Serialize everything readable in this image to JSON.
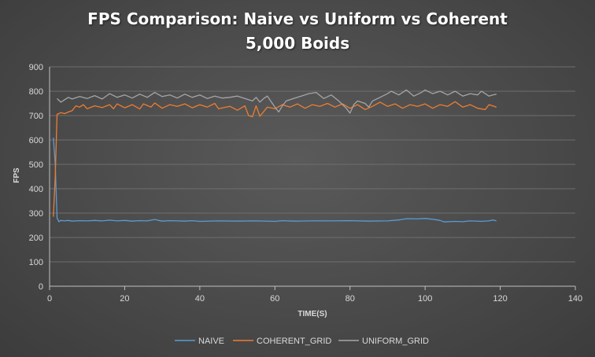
{
  "chart_data": {
    "type": "line",
    "title": "FPS Comparison: Naive vs Uniform vs Coherent",
    "subtitle": "5,000 Boids",
    "xlabel": "TIME(S)",
    "ylabel": "FPS",
    "xlim": [
      0,
      140
    ],
    "ylim": [
      0,
      900
    ],
    "xticks": [
      0,
      20,
      40,
      60,
      80,
      100,
      120,
      140
    ],
    "yticks": [
      0,
      100,
      200,
      300,
      400,
      500,
      600,
      700,
      800,
      900
    ],
    "grid": "horizontal",
    "legend": "bottom",
    "series": [
      {
        "name": "NAIVE",
        "color": "#5b9bd5",
        "points": [
          [
            1,
            610
          ],
          [
            1.5,
            500
          ],
          [
            2,
            280
          ],
          [
            2.5,
            265
          ],
          [
            3,
            270
          ],
          [
            4,
            268
          ],
          [
            5,
            270
          ],
          [
            6,
            267
          ],
          [
            8,
            269
          ],
          [
            10,
            268
          ],
          [
            12,
            270
          ],
          [
            14,
            268
          ],
          [
            16,
            271
          ],
          [
            18,
            268
          ],
          [
            20,
            270
          ],
          [
            22,
            267
          ],
          [
            24,
            269
          ],
          [
            26,
            268
          ],
          [
            28,
            274
          ],
          [
            29,
            270
          ],
          [
            30,
            267
          ],
          [
            32,
            269
          ],
          [
            34,
            268
          ],
          [
            36,
            267
          ],
          [
            38,
            269
          ],
          [
            40,
            266
          ],
          [
            45,
            268
          ],
          [
            50,
            267
          ],
          [
            55,
            268
          ],
          [
            60,
            266
          ],
          [
            62,
            269
          ],
          [
            65,
            267
          ],
          [
            70,
            268
          ],
          [
            75,
            268
          ],
          [
            80,
            269
          ],
          [
            85,
            267
          ],
          [
            90,
            268
          ],
          [
            93,
            272
          ],
          [
            95,
            277
          ],
          [
            98,
            276
          ],
          [
            100,
            278
          ],
          [
            102,
            275
          ],
          [
            104,
            270
          ],
          [
            105,
            264
          ],
          [
            108,
            266
          ],
          [
            110,
            265
          ],
          [
            112,
            268
          ],
          [
            115,
            266
          ],
          [
            117,
            268
          ],
          [
            118,
            272
          ],
          [
            119,
            268
          ]
        ]
      },
      {
        "name": "COHERENT_GRID",
        "color": "#ed7d31",
        "points": [
          [
            1,
            285
          ],
          [
            1.5,
            450
          ],
          [
            2,
            705
          ],
          [
            3,
            712
          ],
          [
            4,
            708
          ],
          [
            5,
            715
          ],
          [
            6,
            720
          ],
          [
            7,
            740
          ],
          [
            8,
            735
          ],
          [
            9,
            745
          ],
          [
            10,
            728
          ],
          [
            12,
            740
          ],
          [
            14,
            733
          ],
          [
            16,
            745
          ],
          [
            17,
            728
          ],
          [
            18,
            748
          ],
          [
            20,
            732
          ],
          [
            22,
            745
          ],
          [
            24,
            727
          ],
          [
            25,
            748
          ],
          [
            27,
            735
          ],
          [
            28,
            752
          ],
          [
            30,
            730
          ],
          [
            32,
            745
          ],
          [
            34,
            738
          ],
          [
            36,
            748
          ],
          [
            38,
            732
          ],
          [
            40,
            745
          ],
          [
            42,
            735
          ],
          [
            44,
            750
          ],
          [
            45,
            728
          ],
          [
            48,
            738
          ],
          [
            50,
            722
          ],
          [
            52,
            740
          ],
          [
            53,
            700
          ],
          [
            54,
            695
          ],
          [
            55,
            740
          ],
          [
            56,
            697
          ],
          [
            58,
            735
          ],
          [
            60,
            728
          ],
          [
            62,
            745
          ],
          [
            64,
            735
          ],
          [
            66,
            748
          ],
          [
            68,
            730
          ],
          [
            70,
            745
          ],
          [
            72,
            738
          ],
          [
            74,
            750
          ],
          [
            76,
            735
          ],
          [
            78,
            748
          ],
          [
            80,
            730
          ],
          [
            82,
            745
          ],
          [
            84,
            725
          ],
          [
            86,
            738
          ],
          [
            88,
            755
          ],
          [
            90,
            738
          ],
          [
            92,
            748
          ],
          [
            94,
            730
          ],
          [
            96,
            745
          ],
          [
            98,
            738
          ],
          [
            100,
            748
          ],
          [
            102,
            730
          ],
          [
            104,
            745
          ],
          [
            106,
            738
          ],
          [
            108,
            757
          ],
          [
            110,
            735
          ],
          [
            112,
            745
          ],
          [
            114,
            730
          ],
          [
            116,
            725
          ],
          [
            117,
            745
          ],
          [
            118,
            740
          ],
          [
            119,
            735
          ]
        ]
      },
      {
        "name": "UNIFORM_GRID",
        "color": "#a5a5a5",
        "points": [
          [
            2,
            770
          ],
          [
            3,
            755
          ],
          [
            4,
            765
          ],
          [
            5,
            775
          ],
          [
            6,
            768
          ],
          [
            8,
            778
          ],
          [
            10,
            770
          ],
          [
            12,
            782
          ],
          [
            14,
            768
          ],
          [
            16,
            790
          ],
          [
            18,
            775
          ],
          [
            20,
            785
          ],
          [
            22,
            772
          ],
          [
            24,
            788
          ],
          [
            26,
            775
          ],
          [
            28,
            795
          ],
          [
            30,
            778
          ],
          [
            32,
            785
          ],
          [
            34,
            772
          ],
          [
            36,
            788
          ],
          [
            38,
            775
          ],
          [
            40,
            785
          ],
          [
            42,
            770
          ],
          [
            44,
            780
          ],
          [
            46,
            772
          ],
          [
            48,
            775
          ],
          [
            50,
            780
          ],
          [
            52,
            770
          ],
          [
            54,
            760
          ],
          [
            55,
            775
          ],
          [
            56,
            755
          ],
          [
            57,
            770
          ],
          [
            58,
            780
          ],
          [
            60,
            735
          ],
          [
            61,
            715
          ],
          [
            62,
            740
          ],
          [
            63,
            760
          ],
          [
            65,
            770
          ],
          [
            67,
            780
          ],
          [
            69,
            790
          ],
          [
            71,
            795
          ],
          [
            73,
            770
          ],
          [
            75,
            785
          ],
          [
            77,
            760
          ],
          [
            79,
            730
          ],
          [
            80,
            710
          ],
          [
            81,
            745
          ],
          [
            82,
            760
          ],
          [
            84,
            750
          ],
          [
            85,
            735
          ],
          [
            86,
            760
          ],
          [
            88,
            775
          ],
          [
            90,
            790
          ],
          [
            91,
            800
          ],
          [
            93,
            785
          ],
          [
            95,
            805
          ],
          [
            97,
            780
          ],
          [
            99,
            795
          ],
          [
            100,
            805
          ],
          [
            102,
            790
          ],
          [
            104,
            800
          ],
          [
            106,
            785
          ],
          [
            108,
            800
          ],
          [
            110,
            780
          ],
          [
            112,
            790
          ],
          [
            114,
            785
          ],
          [
            115,
            800
          ],
          [
            116,
            790
          ],
          [
            117,
            780
          ],
          [
            118,
            785
          ],
          [
            119,
            788
          ]
        ]
      }
    ]
  }
}
